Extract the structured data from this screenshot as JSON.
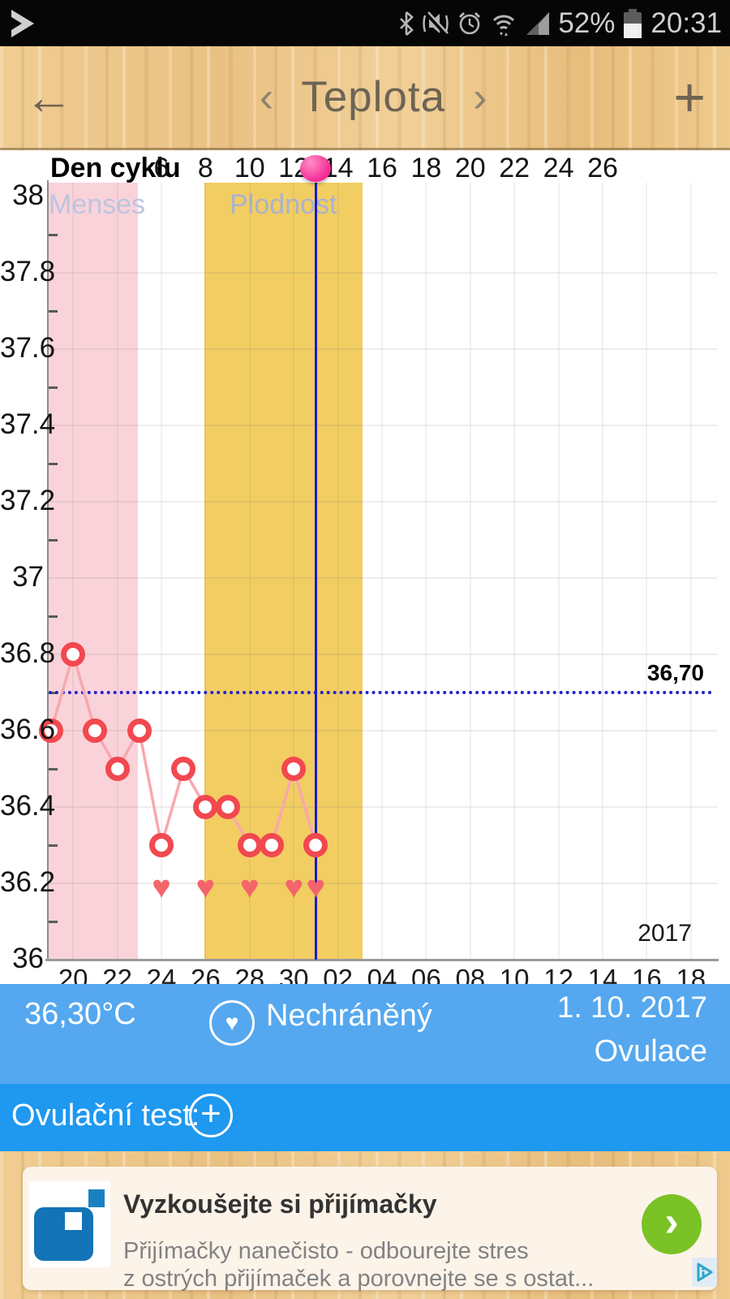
{
  "status_bar": {
    "battery": "52%",
    "time": "20:31"
  },
  "header": {
    "back_glyph": "←",
    "prev_glyph": "‹",
    "title": "Teplota",
    "next_glyph": "›",
    "add_glyph": "+"
  },
  "chart_data": {
    "type": "line",
    "top_axis_label": "Den cyklu",
    "cycle_day_ticks": [
      6,
      8,
      10,
      12,
      14,
      16,
      18,
      20,
      22,
      24,
      26
    ],
    "x_date_labels": [
      "20",
      "22",
      "24",
      "26",
      "28",
      "30",
      "02",
      "04",
      "06",
      "08",
      "10",
      "12",
      "14",
      "16",
      "18"
    ],
    "x_date_label_indices": [
      1,
      3,
      5,
      7,
      9,
      11,
      13,
      15,
      17,
      19,
      21,
      23,
      25,
      27,
      29
    ],
    "num_days": 30,
    "temps": [
      36.6,
      36.8,
      36.6,
      36.5,
      36.6,
      36.3,
      36.5,
      36.4,
      36.4,
      36.3,
      36.3,
      36.5,
      36.3
    ],
    "heart_day_indices": [
      5,
      7,
      9,
      11,
      12
    ],
    "heart_glyph": "♥",
    "regions": [
      {
        "name": "menses",
        "label": "Menses",
        "start_idx": -0.11,
        "end_idx": 3.93,
        "color": "#f9d3d9",
        "label_color": "#bdc5e2"
      },
      {
        "name": "plodnost",
        "label": "Plodnost",
        "start_idx": 6.95,
        "end_idx": 14.1,
        "color": "#f2cd62",
        "label_color": "#a9b2cf"
      }
    ],
    "coverline": {
      "value": 36.7,
      "label": "36,70"
    },
    "current_day_idx": 12,
    "ylim": [
      36,
      38
    ],
    "ytick_step": 0.2,
    "year_label": "2017",
    "grid": true,
    "legend": "none",
    "marker_color": "#f2484f",
    "line_color": "#f8a8ae",
    "heart_color": "#f4646b",
    "cursor_color": "#1b1bd0"
  },
  "summary_bar": {
    "temperature": "36,30°C",
    "protection": "Nechráněný",
    "heart_icon_glyph": "♥",
    "date": "1. 10. 2017",
    "event": "Ovulace"
  },
  "test_bar": {
    "label": "Ovulační test:",
    "plus_glyph": "+"
  },
  "ad_banner": {
    "title": "Vyzkoušejte si přijímačky",
    "description_line1": "Přijímačky nanečisto - odbourejte stres",
    "description_line2": "z ostrých přijímaček a porovnejte se s ostat...",
    "cta_glyph": "›"
  },
  "colors": {
    "summary_bar": "#55a8ef",
    "test_bar": "#1f98f0",
    "ad_cta_green": "#7ac225"
  }
}
